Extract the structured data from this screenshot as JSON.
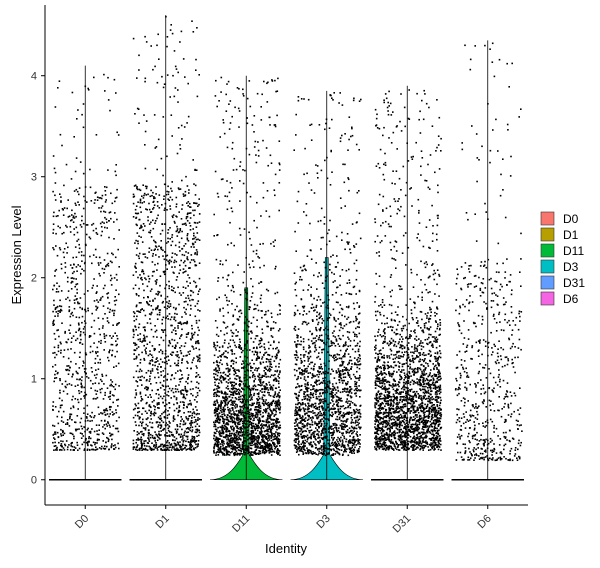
{
  "chart_data": {
    "type": "violin",
    "title": "",
    "xlabel": "Identity",
    "ylabel": "Expression Level",
    "ylim": [
      -0.25,
      4.7
    ],
    "yticks": [
      0,
      1,
      2,
      3,
      4
    ],
    "grid": false,
    "legend_position": "right",
    "categories": [
      "D0",
      "D1",
      "D11",
      "D3",
      "D31",
      "D6"
    ],
    "series": [
      {
        "name": "D0",
        "color": "#F8766D",
        "max": 4.1,
        "violin_peak_width": 0.0,
        "jitter_high": 2.4,
        "jitter_low": 0.3,
        "point_count": 900
      },
      {
        "name": "D1",
        "color": "#B79F00",
        "max": 4.6,
        "violin_peak_width": 0.0,
        "jitter_high": 2.4,
        "jitter_low": 0.3,
        "point_count": 1500
      },
      {
        "name": "D11",
        "color": "#00BA38",
        "max": 4.0,
        "violin_peak_width": 0.15,
        "jitter_high": 1.3,
        "jitter_low": 0.25,
        "point_count": 2100
      },
      {
        "name": "D3",
        "color": "#00BFC4",
        "max": 3.85,
        "violin_peak_width": 0.17,
        "jitter_high": 1.6,
        "jitter_low": 0.25,
        "point_count": 1700
      },
      {
        "name": "D31",
        "color": "#619CFF",
        "max": 3.9,
        "violin_peak_width": 0.0,
        "jitter_high": 1.4,
        "jitter_low": 0.3,
        "point_count": 2300
      },
      {
        "name": "D6",
        "color": "#F564E3",
        "max": 4.35,
        "violin_peak_width": 0.0,
        "jitter_high": 1.8,
        "jitter_low": 0.2,
        "point_count": 600
      }
    ]
  }
}
